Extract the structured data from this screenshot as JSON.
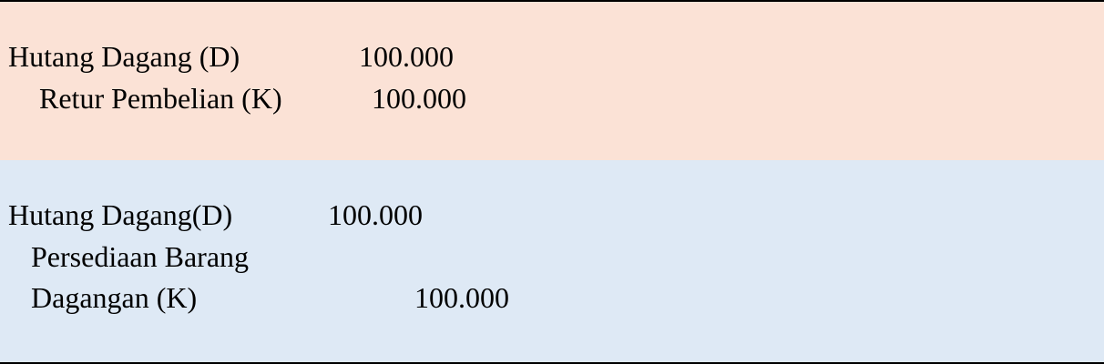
{
  "entries": [
    {
      "debit_account": "Hutang Dagang (D)",
      "debit_amount": "100.000",
      "credit_account": "Retur Pembelian (K)",
      "credit_amount": "100.000"
    },
    {
      "debit_account": "Hutang Dagang(D)",
      "debit_amount": "100.000",
      "credit_account_line1": "Persediaan Barang",
      "credit_account_line2": "Dagangan (K)",
      "credit_amount": "100.000"
    }
  ],
  "colors": {
    "row1_background": "#fbe2d6",
    "row2_background": "#dee9f5",
    "border": "#000000"
  }
}
